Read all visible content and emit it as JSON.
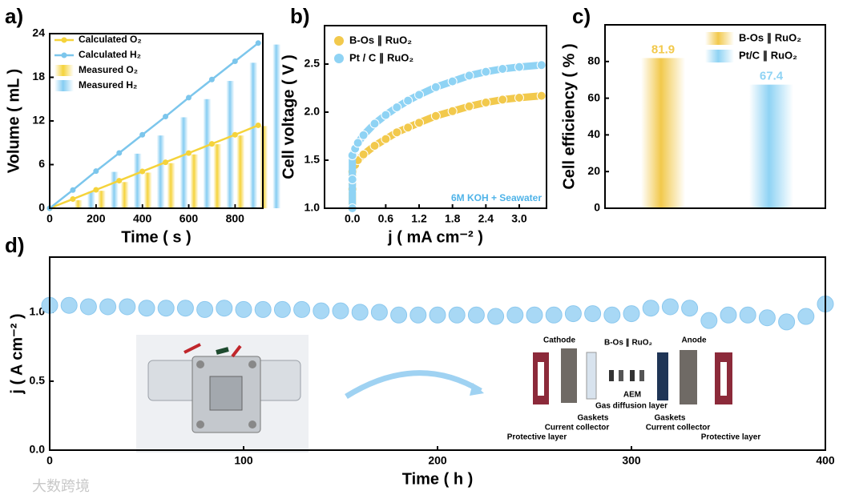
{
  "chart_data": [
    {
      "type": "line",
      "panel": "a)",
      "xlabel": "Time ( s )",
      "ylabel": "Volume ( mL )",
      "xlim": [
        0,
        920
      ],
      "xticks": [
        0,
        200,
        400,
        600,
        800
      ],
      "ylim": [
        0,
        24
      ],
      "yticks": [
        0,
        6,
        12,
        18,
        24
      ],
      "legend": "upper left",
      "series": [
        {
          "name": "Calculated O₂",
          "type": "line",
          "color": "#f5d33b",
          "x": [
            0,
            100,
            200,
            300,
            400,
            500,
            600,
            700,
            800,
            900
          ],
          "values": [
            0,
            1.26,
            2.53,
            3.79,
            5.06,
            6.32,
            7.58,
            8.85,
            10.1,
            11.4
          ]
        },
        {
          "name": "Calculated H₂",
          "type": "line",
          "color": "#7cc6ec",
          "x": [
            0,
            100,
            200,
            300,
            400,
            500,
            600,
            700,
            800,
            900
          ],
          "values": [
            0,
            2.5,
            5.1,
            7.6,
            10.1,
            12.6,
            15.2,
            17.7,
            20.2,
            22.7
          ]
        },
        {
          "name": "Measured O₂",
          "type": "bar",
          "color": "#f5d33b",
          "x": [
            100,
            200,
            300,
            400,
            500,
            600,
            700,
            800,
            900
          ],
          "values": [
            1.1,
            2.4,
            3.6,
            4.9,
            6.2,
            7.4,
            8.8,
            10,
            11.3
          ]
        },
        {
          "name": "Measured H₂",
          "type": "bar",
          "color": "#86cdf2",
          "x": [
            100,
            200,
            300,
            400,
            500,
            600,
            700,
            800,
            900
          ],
          "values": [
            2.3,
            5,
            7.5,
            10,
            12.5,
            15,
            17.5,
            20,
            22.5
          ]
        }
      ]
    },
    {
      "type": "scatter",
      "panel": "b)",
      "xlabel": "j ( mA cm⁻² )",
      "ylabel": "Cell voltage ( V )",
      "xlim": [
        -0.5,
        3.49
      ],
      "xticks": [
        {
          "value": 0,
          "label": "0.0"
        },
        0.6,
        1.2,
        1.8,
        2.4,
        {
          "value": 3,
          "label": "3.0"
        }
      ],
      "ylim": [
        1,
        2.9
      ],
      "yticks": [
        {
          "value": 1,
          "label": "1.0"
        },
        1.5,
        {
          "value": 2,
          "label": "2.0"
        },
        2.5
      ],
      "legend": "upper left",
      "annotation": "6M KOH + Seawater",
      "series": [
        {
          "name": "B-Os ∥ RuO₂",
          "color": "#f2c94c",
          "x": [
            0,
            0,
            0,
            0.05,
            0.1,
            0.2,
            0.4,
            0.6,
            0.8,
            1.0,
            1.2,
            1.5,
            1.8,
            2.1,
            2.4,
            2.7,
            3.0,
            3.4
          ],
          "values": [
            1.0,
            1.2,
            1.38,
            1.45,
            1.5,
            1.56,
            1.65,
            1.72,
            1.79,
            1.84,
            1.89,
            1.96,
            2.01,
            2.06,
            2.1,
            2.13,
            2.15,
            2.17
          ]
        },
        {
          "name": "Pt / C ∥ RuO₂",
          "color": "#8fd3f4",
          "x": [
            0,
            0,
            0,
            0.05,
            0.1,
            0.2,
            0.4,
            0.6,
            0.8,
            1.0,
            1.2,
            1.5,
            1.8,
            2.1,
            2.4,
            2.7,
            3.0,
            3.4
          ],
          "values": [
            1.0,
            1.3,
            1.55,
            1.62,
            1.68,
            1.76,
            1.88,
            1.97,
            2.05,
            2.12,
            2.18,
            2.26,
            2.32,
            2.38,
            2.42,
            2.45,
            2.47,
            2.49
          ]
        }
      ]
    },
    {
      "type": "bar",
      "panel": "c)",
      "ylabel": "Cell efficiency ( % )",
      "ylim": [
        0,
        100
      ],
      "yticks": [
        0,
        20,
        40,
        60,
        80
      ],
      "legend": "upper right",
      "series": [
        {
          "name": "B-Os ∥ RuO₂",
          "color": "#f2c94c",
          "values": [
            81.9
          ]
        },
        {
          "name": "Pt/C ∥ RuO₂",
          "color": "#8fd3f4",
          "values": [
            67.4
          ]
        }
      ]
    },
    {
      "type": "scatter",
      "panel": "d)",
      "xlabel": "Time ( h )",
      "ylabel": "j ( A cm⁻² )",
      "xlim": [
        0,
        400
      ],
      "xticks": [
        0,
        100,
        200,
        300,
        400
      ],
      "ylim": [
        0,
        1.4
      ],
      "yticks": [
        {
          "value": 0,
          "label": "0.0"
        },
        0.5,
        {
          "value": 1,
          "label": "1.0"
        }
      ],
      "series": [
        {
          "color": "#a8d8f5",
          "x": [
            0,
            10,
            20,
            30,
            40,
            50,
            60,
            70,
            80,
            90,
            100,
            110,
            120,
            130,
            140,
            150,
            160,
            170,
            180,
            190,
            200,
            210,
            220,
            230,
            240,
            250,
            260,
            270,
            280,
            290,
            300,
            310,
            320,
            330,
            340,
            350,
            360,
            370,
            380,
            390,
            400
          ],
          "values": [
            1.05,
            1.05,
            1.04,
            1.04,
            1.04,
            1.03,
            1.03,
            1.03,
            1.02,
            1.03,
            1.02,
            1.02,
            1.02,
            1.02,
            1.01,
            1.01,
            1.0,
            1.0,
            0.98,
            0.98,
            0.98,
            0.98,
            0.98,
            0.97,
            0.98,
            0.98,
            0.98,
            0.99,
            0.99,
            0.98,
            0.99,
            1.03,
            1.04,
            1.03,
            0.94,
            0.98,
            0.98,
            0.96,
            0.93,
            0.97,
            1.06
          ]
        }
      ],
      "annotations": [
        "Cathode",
        "B-Os ∥ RuO₂",
        "Anode",
        "AEM",
        "Gas diffusion layer",
        "Gaskets",
        "Current collector",
        "Protective layer",
        "Gaskets",
        "Current collector",
        "Protective layer"
      ]
    }
  ],
  "watermark": "大数跨境"
}
